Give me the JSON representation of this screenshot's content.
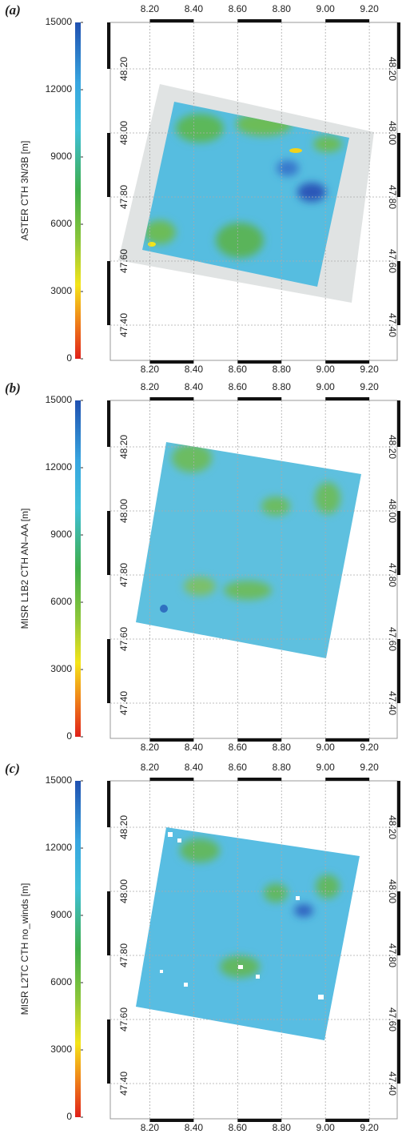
{
  "chart_data": [
    {
      "type": "map",
      "panel_label": "(a)",
      "colorbar_label": "ASTER CTH 3N/3B [m]",
      "colorbar_lim": [
        0,
        15000
      ],
      "colorbar_ticks": [
        0,
        3000,
        6000,
        9000,
        12000,
        15000
      ],
      "xlim": [
        8.02,
        9.327
      ],
      "ylim": [
        47.29,
        48.345
      ],
      "xticks": [
        {
          "value": 8.2,
          "label": "8.20"
        },
        {
          "value": 8.4,
          "label": "8.40"
        },
        {
          "value": 8.6,
          "label": "8.60"
        },
        {
          "value": 8.8,
          "label": "8.80"
        },
        {
          "value": 9.0,
          "label": "9.00"
        },
        {
          "value": 9.2,
          "label": "9.20"
        }
      ],
      "yticks": [
        {
          "value": 47.4,
          "label": "47.40"
        },
        {
          "value": 47.6,
          "label": "47.60"
        },
        {
          "value": 47.8,
          "label": "47.80"
        },
        {
          "value": 48.0,
          "label": "48.00"
        },
        {
          "value": 48.2,
          "label": "48.20"
        }
      ],
      "grid": true
    },
    {
      "type": "map",
      "panel_label": "(b)",
      "colorbar_label": "MISR L1B2 CTH AN–AA [m]",
      "colorbar_lim": [
        0,
        15000
      ],
      "colorbar_ticks": [
        0,
        3000,
        6000,
        9000,
        12000,
        15000
      ],
      "xlim": [
        8.02,
        9.327
      ],
      "ylim": [
        47.29,
        48.345
      ],
      "xticks": [
        {
          "value": 8.2,
          "label": "8.20"
        },
        {
          "value": 8.4,
          "label": "8.40"
        },
        {
          "value": 8.6,
          "label": "8.60"
        },
        {
          "value": 8.8,
          "label": "8.80"
        },
        {
          "value": 9.0,
          "label": "9.00"
        },
        {
          "value": 9.2,
          "label": "9.20"
        }
      ],
      "yticks": [
        {
          "value": 47.4,
          "label": "47.40"
        },
        {
          "value": 47.6,
          "label": "47.60"
        },
        {
          "value": 47.8,
          "label": "47.80"
        },
        {
          "value": 48.0,
          "label": "48.00"
        },
        {
          "value": 48.2,
          "label": "48.20"
        }
      ],
      "grid": true
    },
    {
      "type": "map",
      "panel_label": "(c)",
      "colorbar_label": "MISR L2TC CTH no_winds [m]",
      "colorbar_lim": [
        0,
        15000
      ],
      "colorbar_ticks": [
        0,
        3000,
        6000,
        9000,
        12000,
        15000
      ],
      "xlim": [
        8.02,
        9.327
      ],
      "ylim": [
        47.29,
        48.345
      ],
      "xticks": [
        {
          "value": 8.2,
          "label": "8.20"
        },
        {
          "value": 8.4,
          "label": "8.40"
        },
        {
          "value": 8.6,
          "label": "8.60"
        },
        {
          "value": 8.8,
          "label": "8.80"
        },
        {
          "value": 9.0,
          "label": "9.00"
        },
        {
          "value": 9.2,
          "label": "9.20"
        }
      ],
      "yticks": [
        {
          "value": 47.4,
          "label": "47.40"
        },
        {
          "value": 47.6,
          "label": "47.60"
        },
        {
          "value": 47.8,
          "label": "47.80"
        },
        {
          "value": 48.0,
          "label": "48.00"
        },
        {
          "value": 48.2,
          "label": "48.20"
        }
      ],
      "grid": true
    }
  ]
}
